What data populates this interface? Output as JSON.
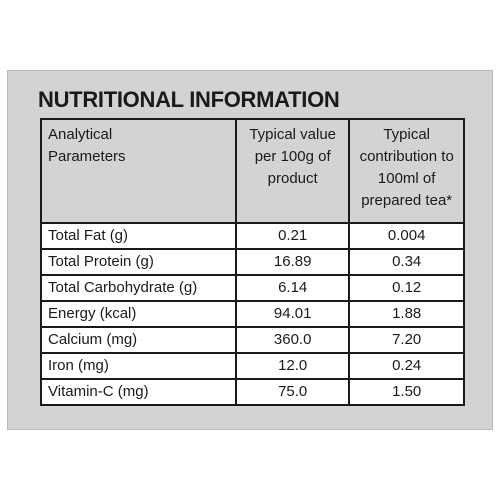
{
  "title": "NUTRITIONAL INFORMATION",
  "headers": [
    "Analytical\nParameters",
    "Typical value\nper 100g of\nproduct",
    "Typical\ncontribution to\n100ml of\nprepared tea*"
  ],
  "rows": [
    {
      "parameter": "Total Fat (g)",
      "per_100g": "0.21",
      "per_100ml": "0.004"
    },
    {
      "parameter": "Total Protein (g)",
      "per_100g": "16.89",
      "per_100ml": "0.34"
    },
    {
      "parameter": "Total Carbohydrate (g)",
      "per_100g": "6.14",
      "per_100ml": "0.12"
    },
    {
      "parameter": "Energy (kcal)",
      "per_100g": "94.01",
      "per_100ml": "1.88"
    },
    {
      "parameter": "Calcium (mg)",
      "per_100g": "360.0",
      "per_100ml": "7.20"
    },
    {
      "parameter": "Iron (mg)",
      "per_100g": "12.0",
      "per_100ml": "0.24"
    },
    {
      "parameter": "Vitamin-C (mg)",
      "per_100g": "75.0",
      "per_100ml": "1.50"
    }
  ],
  "colors": {
    "panel_background": "#d3d3d3",
    "cell_background": "#ffffff",
    "text": "#1a1a1a",
    "border": "#1a1a1a"
  }
}
